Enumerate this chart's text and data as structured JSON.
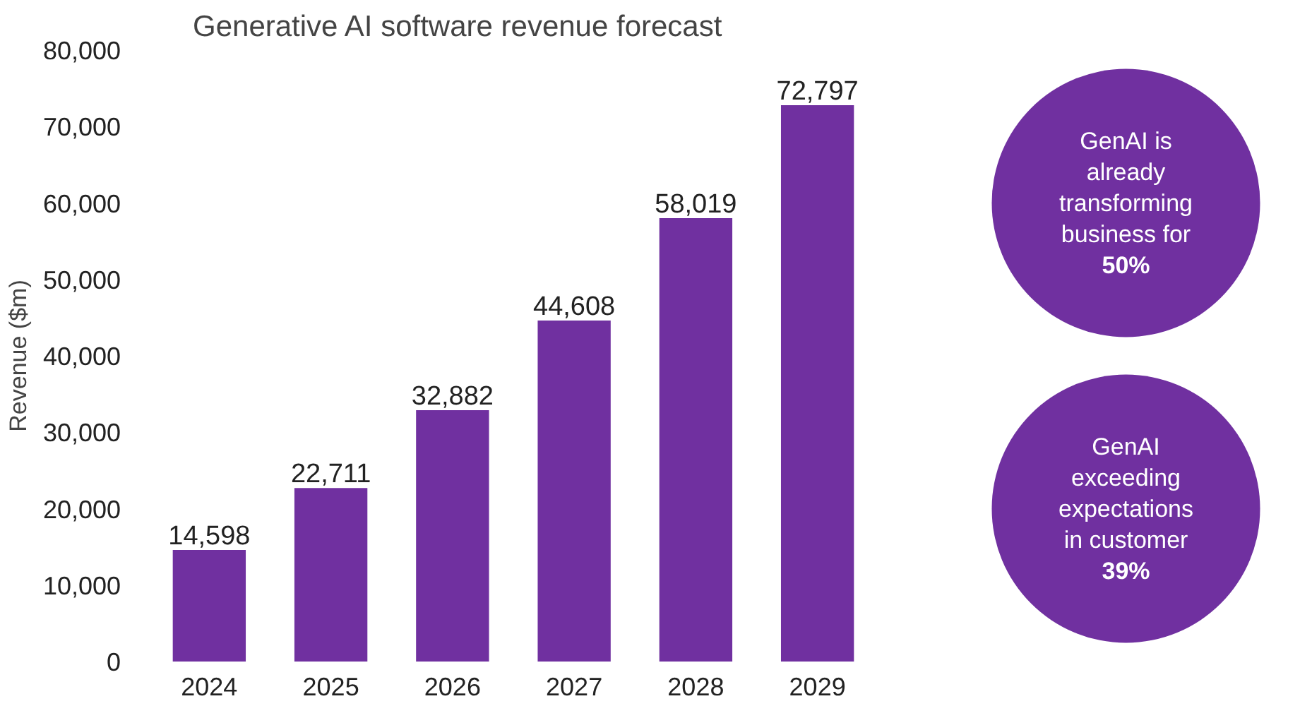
{
  "chart_data": {
    "type": "bar",
    "title": "Generative AI software revenue forecast",
    "ylabel": "Revenue ($m)",
    "categories": [
      "2024",
      "2025",
      "2026",
      "2027",
      "2028",
      "2029"
    ],
    "values": [
      14598,
      22711,
      32882,
      44608,
      58019,
      72797
    ],
    "color": "#7030a0",
    "ylim": [
      0,
      80000
    ],
    "yticks": [
      {
        "value": 0,
        "label": "0"
      },
      {
        "value": 10000,
        "label": "10,000"
      },
      {
        "value": 20000,
        "label": "20,000"
      },
      {
        "value": 30000,
        "label": "30,000"
      },
      {
        "value": 40000,
        "label": "40,000"
      },
      {
        "value": 50000,
        "label": "50,000"
      },
      {
        "value": 60000,
        "label": "60,000"
      },
      {
        "value": 70000,
        "label": "70,000"
      },
      {
        "value": 80000,
        "label": "80,000"
      }
    ],
    "value_labels": [
      "14,598",
      "22,711",
      "32,882",
      "44,608",
      "58,019",
      "72,797"
    ],
    "grid": false,
    "annotations": [
      "GenAI is\nalready\ntransforming\nbusiness for\n50%",
      "GenAI\nexceeding\nexpectations\nin customer\n39%"
    ]
  }
}
